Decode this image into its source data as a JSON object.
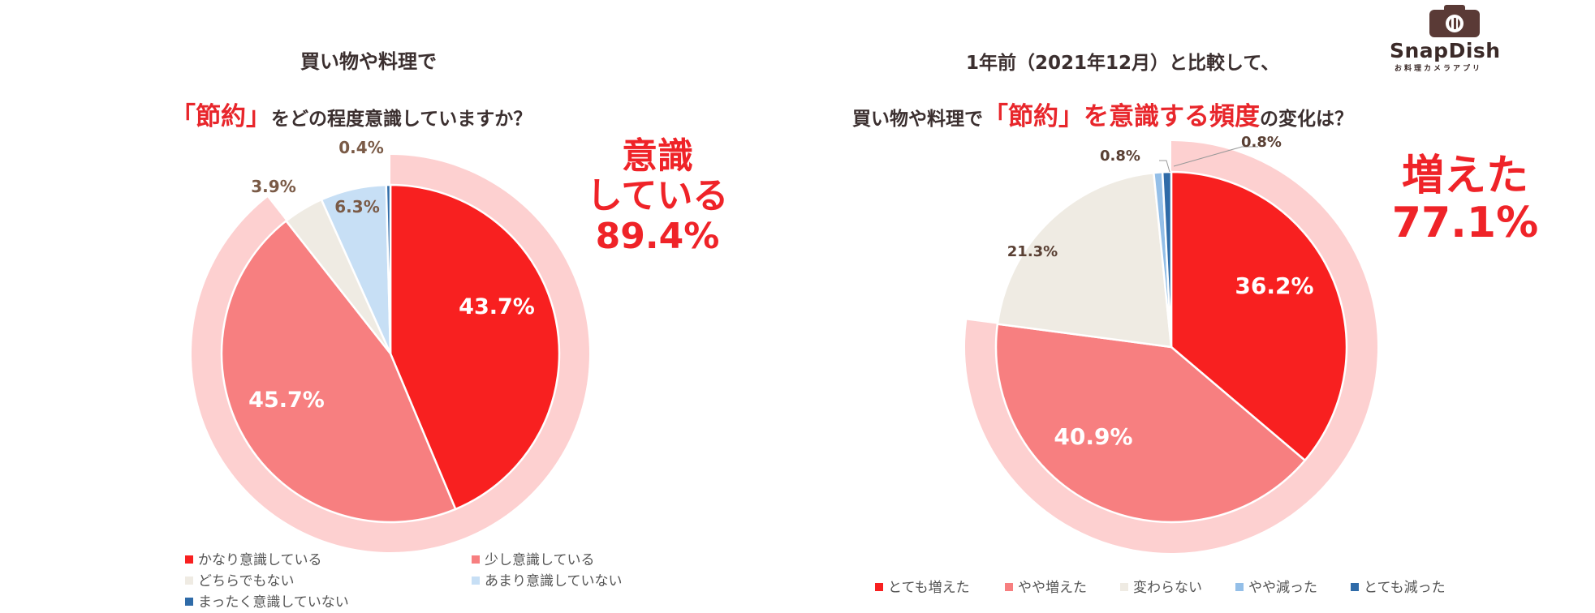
{
  "brand": {
    "name": "SnapDish",
    "tagline": "お料理カメラアプリ"
  },
  "chart_data": [
    {
      "type": "pie",
      "title_line1": "買い物や料理で",
      "title_highlight": "「節約」",
      "title_rest": "をどの程度意識していますか？",
      "callout_line1": "意識",
      "callout_line2": "している",
      "callout_value": "89.4%",
      "highlight_total": 89.4,
      "slices": [
        {
          "label": "かなり意識している",
          "value": 43.7,
          "text": "43.7%",
          "color": "#f82020"
        },
        {
          "label": "少し意識している",
          "value": 45.7,
          "text": "45.7%",
          "color": "#f77f80"
        },
        {
          "label": "どちらでもない",
          "value": 3.9,
          "text": "3.9%",
          "color": "#efebe3"
        },
        {
          "label": "あまり意識していない",
          "value": 6.3,
          "text": "6.3%",
          "color": "#c7dff5"
        },
        {
          "label": "まったく意識していない",
          "value": 0.4,
          "text": "0.4%",
          "color": "#2f6ba8"
        }
      ]
    },
    {
      "type": "pie",
      "title_line1": "1年前（2021年12月）と比較して、",
      "title_pre": "買い物や料理で",
      "title_highlight": "「節約」を意識する頻度",
      "title_rest": "の変化は？",
      "callout_line1": "増えた",
      "callout_value": "77.1%",
      "highlight_total": 77.1,
      "slices": [
        {
          "label": "とても増えた",
          "value": 36.2,
          "text": "36.2%",
          "color": "#f82020"
        },
        {
          "label": "やや増えた",
          "value": 40.9,
          "text": "40.9%",
          "color": "#f77f80"
        },
        {
          "label": "変わらない",
          "value": 21.3,
          "text": "21.3%",
          "color": "#efebe3"
        },
        {
          "label": "やや減った",
          "value": 0.8,
          "text": "0.8%",
          "color": "#94bfe8"
        },
        {
          "label": "とても減った",
          "value": 0.8,
          "text": "0.8%",
          "color": "#2f6ba8"
        }
      ]
    }
  ]
}
